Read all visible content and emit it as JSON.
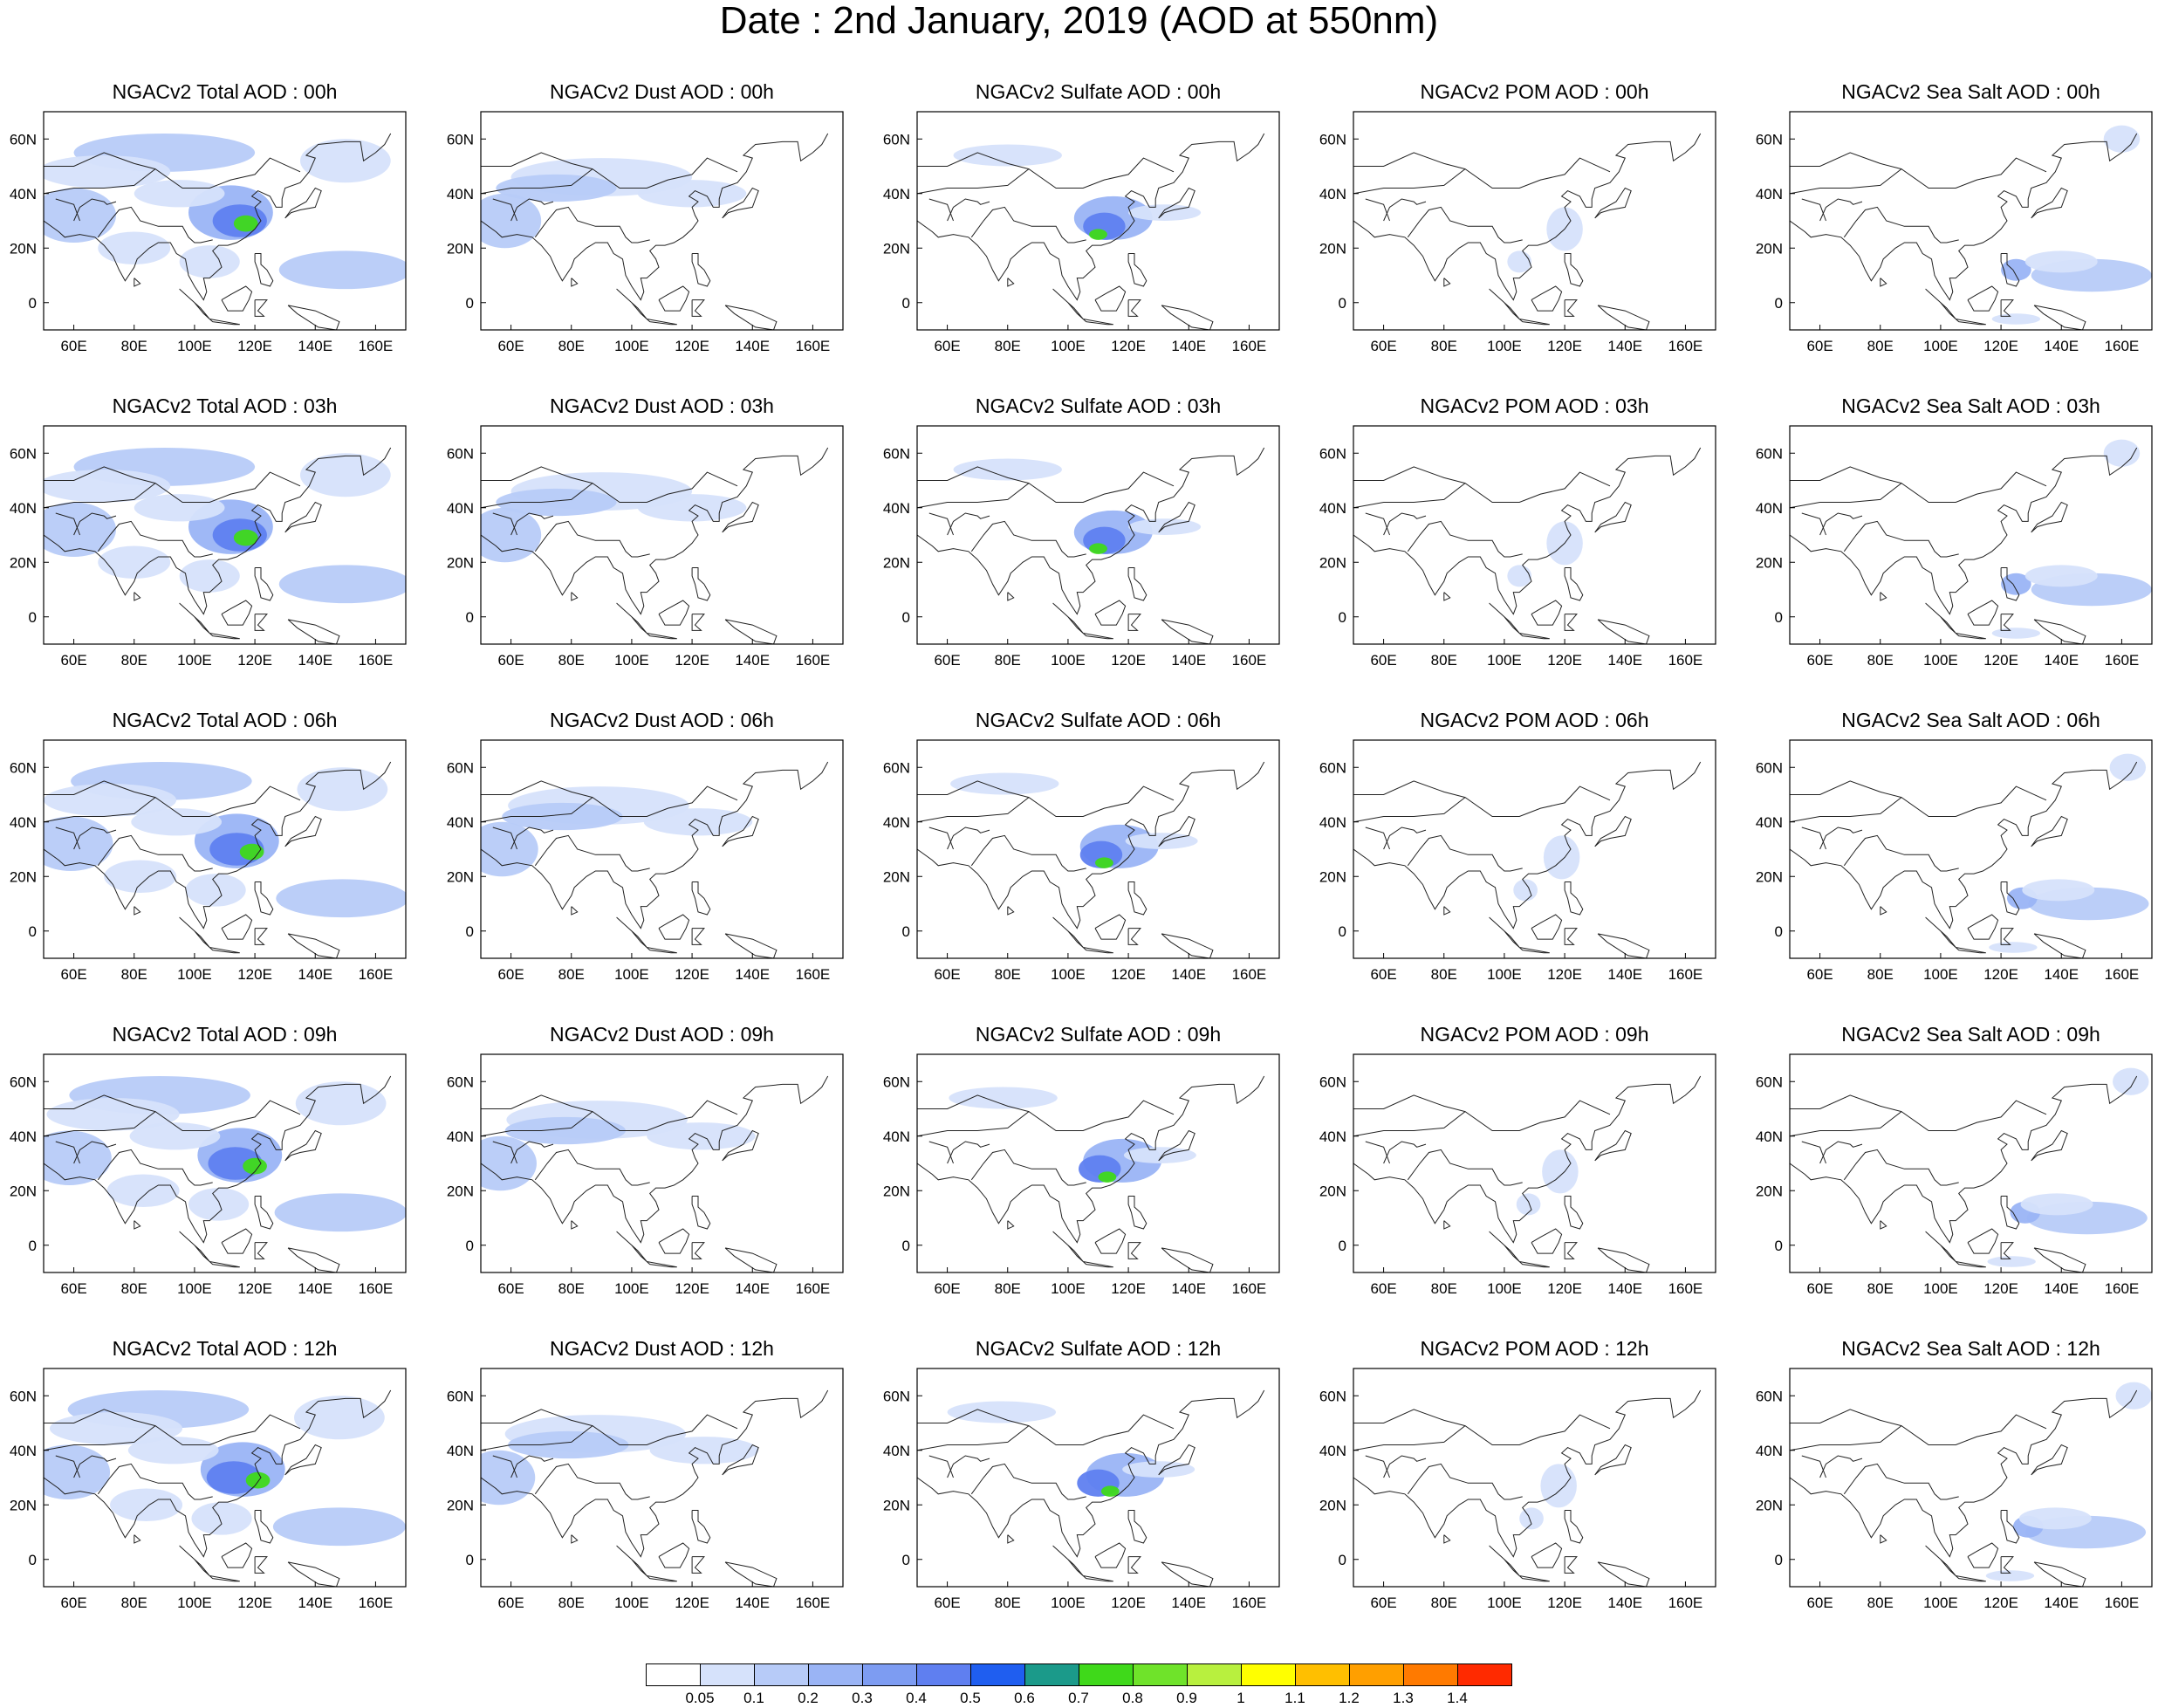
{
  "title": "Date : 2nd January, 2019 (AOD at 550nm)",
  "panel_titles": [
    [
      "NGACv2 Total AOD : 00h",
      "NGACv2 Dust AOD : 00h",
      "NGACv2 Sulfate AOD : 00h",
      "NGACv2 POM AOD : 00h",
      "NGACv2 Sea Salt AOD : 00h"
    ],
    [
      "NGACv2 Total AOD : 03h",
      "NGACv2 Dust AOD : 03h",
      "NGACv2 Sulfate AOD : 03h",
      "NGACv2 POM AOD : 03h",
      "NGACv2 Sea Salt AOD : 03h"
    ],
    [
      "NGACv2 Total AOD : 06h",
      "NGACv2 Dust AOD : 06h",
      "NGACv2 Sulfate AOD : 06h",
      "NGACv2 POM AOD : 06h",
      "NGACv2 Sea Salt AOD : 06h"
    ],
    [
      "NGACv2 Total AOD : 09h",
      "NGACv2 Dust AOD : 09h",
      "NGACv2 Sulfate AOD : 09h",
      "NGACv2 POM AOD : 09h",
      "NGACv2 Sea Salt  AOD : 09h"
    ],
    [
      "NGACv2 Total AOD  : 12h",
      "NGACv2 Dust AOD : 12h",
      "NGACv2 Sulfate AOD : 12h",
      "NGACv2 POM  AOD : 12h",
      "NGACv2 Sea Salt  AOD : 12h"
    ]
  ],
  "chart_data": {
    "type": "heatmap",
    "x_ticks": [
      "60E",
      "80E",
      "100E",
      "120E",
      "140E",
      "160E"
    ],
    "x_tick_values": [
      60,
      80,
      100,
      120,
      140,
      160
    ],
    "y_ticks": [
      "60N",
      "40N",
      "20N",
      "0"
    ],
    "y_tick_values": [
      60,
      40,
      20,
      0
    ],
    "xlim": [
      50,
      170
    ],
    "ylim": [
      -10,
      70
    ],
    "colorbar": {
      "levels": [
        "0.05",
        "0.1",
        "0.2",
        "0.3",
        "0.4",
        "0.5",
        "0.6",
        "0.7",
        "0.8",
        "0.9",
        "1",
        "1.1",
        "1.2",
        "1.3",
        "1.4"
      ],
      "colors": [
        "#ffffff",
        "#d6e2fb",
        "#b7cbf8",
        "#9ab4f5",
        "#7d9cf2",
        "#5f7ff0",
        "#1f5ef0",
        "#1b9a8a",
        "#3fd91a",
        "#6fe32a",
        "#b8f03e",
        "#ffff00",
        "#ffbf00",
        "#ff9f00",
        "#ff7a00",
        "#ff2a00"
      ]
    }
  }
}
